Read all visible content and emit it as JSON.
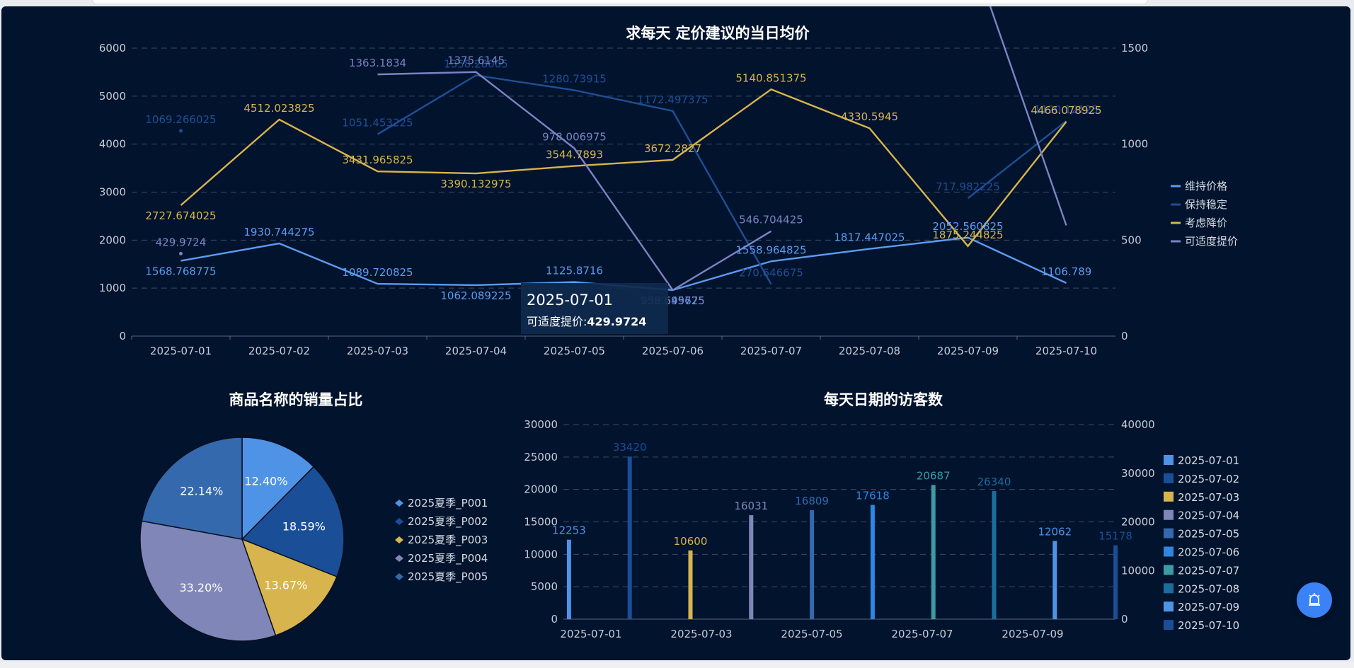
{
  "chart_data": [
    {
      "type": "line",
      "title": "求每天 定价建议的当日均价",
      "categories": [
        "2025-07-01",
        "2025-07-02",
        "2025-07-03",
        "2025-07-04",
        "2025-07-05",
        "2025-07-06",
        "2025-07-07",
        "2025-07-08",
        "2025-07-09",
        "2025-07-10"
      ],
      "y_left": {
        "min": 0,
        "max": 6000,
        "ticks": [
          "0",
          "1000",
          "2000",
          "3000",
          "4000",
          "5000",
          "6000"
        ]
      },
      "y_right": {
        "min": 0,
        "max": 1500,
        "ticks": [
          "0",
          "500",
          "1000",
          "1500"
        ]
      },
      "grid": true,
      "legend_position": "right",
      "series": [
        {
          "name": "维持价格",
          "axis": "left",
          "color": "#5b9cf0",
          "values": [
            1568.768775,
            1930.744275,
            1089.720825,
            1062.089225,
            1125.8716,
            958.645625,
            1558.964825,
            1817.447025,
            2052.560825,
            1106.789
          ],
          "labels": [
            "1568.768775",
            "1930.744275",
            "1089.720825",
            "1062.089225",
            "1125.8716",
            "958.645625",
            "1558.964825",
            "1817.447025",
            "2052.560825",
            "1106.789"
          ]
        },
        {
          "name": "保持稳定",
          "axis": "right",
          "color": "#1f4f96",
          "values": [
            1069.266025,
            null,
            1051.453225,
            1358.28005,
            1280.73915,
            1172.497375,
            270.646675,
            null,
            717.982225,
            1120.12125
          ],
          "labels": [
            "1069.266025",
            "",
            "1051.453225",
            "1358.28005",
            "1280.73915",
            "1172.497375",
            "270.646675",
            "",
            "717.982225",
            "1120.12125"
          ]
        },
        {
          "name": "考虑降价",
          "axis": "left",
          "color": "#d8b44e",
          "values": [
            2727.674025,
            4512.023825,
            3431.965825,
            3390.132975,
            3544.7893,
            3672.2827,
            5140.851375,
            4330.5945,
            1875.244825,
            4466.078925
          ],
          "labels": [
            "2727.674025",
            "4512.023825",
            "3431.965825",
            "3390.132975",
            "3544.7893",
            "3672.2827",
            "5140.851375",
            "4330.5945",
            "1875.244825",
            "4466.078925"
          ]
        },
        {
          "name": "可适度提价",
          "axis": "right",
          "color": "#7b84c4",
          "values": [
            429.9724,
            null,
            1363.1834,
            1375.6145,
            978.006975,
            239.599775,
            546.704425,
            null,
            2052.560825,
            576.87465
          ],
          "labels": [
            "429.9724",
            "",
            "1363.1834",
            "1375.6145",
            "978.006975",
            "239.599775",
            "546.704425",
            "",
            "",
            ""
          ]
        }
      ],
      "tooltip": {
        "date": "2025-07-01",
        "series": "可适度提价",
        "value": "429.9724"
      }
    },
    {
      "type": "pie",
      "title": "商品名称的销量占比",
      "legend_position": "right",
      "slices": [
        {
          "name": "2025夏季_P001",
          "value": 12.4,
          "label": "12.40%",
          "color": "#4f93e6"
        },
        {
          "name": "2025夏季_P002",
          "value": 18.59,
          "label": "18.59%",
          "color": "#1a4f98"
        },
        {
          "name": "2025夏季_P003",
          "value": 13.67,
          "label": "13.67%",
          "color": "#d8b44e"
        },
        {
          "name": "2025夏季_P004",
          "value": 33.2,
          "label": "33.20%",
          "color": "#8087b8"
        },
        {
          "name": "2025夏季_P005",
          "value": 22.14,
          "label": "22.14%",
          "color": "#3569ad"
        }
      ]
    },
    {
      "type": "bar",
      "title": "每天日期的访客数",
      "categories": [
        "2025-07-01",
        "2025-07-02",
        "2025-07-03",
        "2025-07-04",
        "2025-07-05",
        "2025-07-06",
        "2025-07-07",
        "2025-07-08",
        "2025-07-09",
        "2025-07-10"
      ],
      "x_tick_labels": [
        "2025-07-01",
        "2025-07-03",
        "2025-07-05",
        "2025-07-07",
        "2025-07-09"
      ],
      "y_left": {
        "min": 0,
        "max": 30000,
        "ticks": [
          "0",
          "5000",
          "10000",
          "15000",
          "20000",
          "25000",
          "30000"
        ]
      },
      "y_right": {
        "min": 0,
        "max": 40000,
        "ticks": [
          "0",
          "10000",
          "20000",
          "30000",
          "40000"
        ]
      },
      "grid": true,
      "legend_position": "right",
      "series": [
        {
          "name": "2025-07-01",
          "axis": "left",
          "value": 12253,
          "color": "#4f93e6"
        },
        {
          "name": "2025-07-02",
          "axis": "right",
          "value": 33420,
          "color": "#1a4f98"
        },
        {
          "name": "2025-07-03",
          "axis": "left",
          "value": 10600,
          "color": "#d8b44e"
        },
        {
          "name": "2025-07-04",
          "axis": "left",
          "value": 16031,
          "color": "#8087b8"
        },
        {
          "name": "2025-07-05",
          "axis": "left",
          "value": 16809,
          "color": "#3569ad"
        },
        {
          "name": "2025-07-06",
          "axis": "left",
          "value": 17618,
          "color": "#2f86e0"
        },
        {
          "name": "2025-07-07",
          "axis": "left",
          "value": 20687,
          "color": "#3e9aa6"
        },
        {
          "name": "2025-07-08",
          "axis": "right",
          "value": 26340,
          "color": "#1a6e9c"
        },
        {
          "name": "2025-07-09",
          "axis": "left",
          "value": 12062,
          "color": "#4f93e6"
        },
        {
          "name": "2025-07-10",
          "axis": "right",
          "value": 15178,
          "color": "#1a4f98"
        }
      ]
    }
  ],
  "ui": {
    "alarm_icon": "alarm-icon"
  }
}
